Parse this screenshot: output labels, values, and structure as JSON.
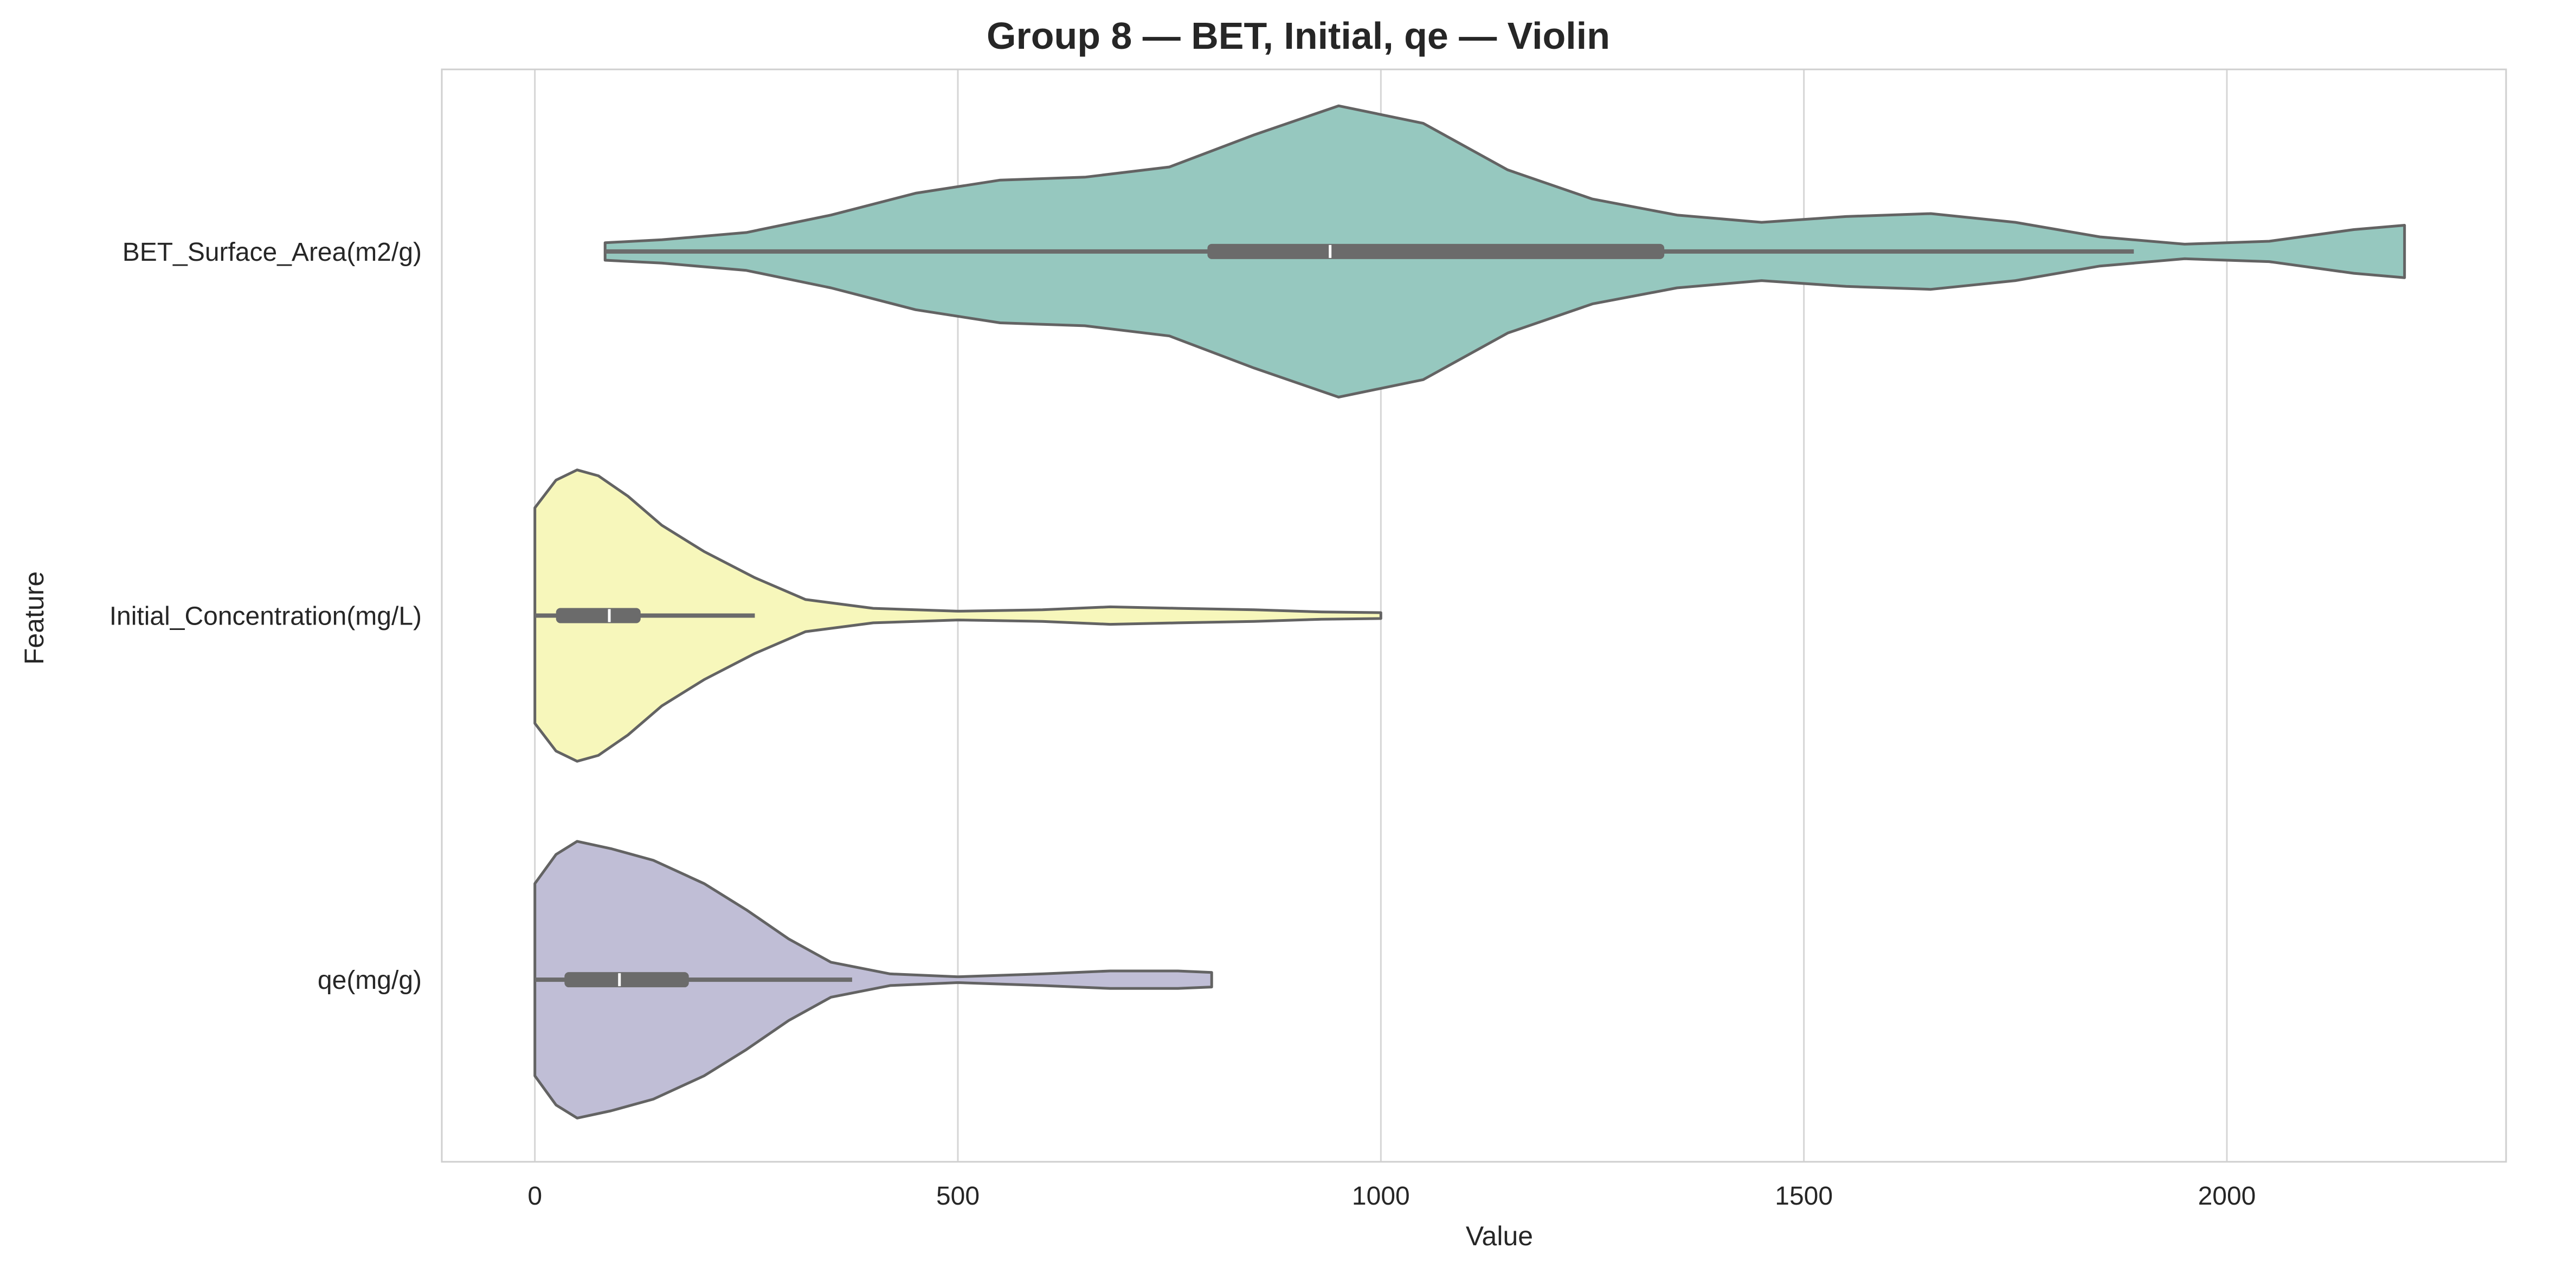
{
  "chart_data": {
    "type": "violin",
    "orientation": "horizontal",
    "title": "Group 8 — BET, Initial, qe — Violin",
    "xlabel": "Value",
    "ylabel": "Feature",
    "xlim": [
      -110,
      2330
    ],
    "xticks": [
      0,
      500,
      1000,
      1500,
      2000
    ],
    "grid": "x",
    "colors": {
      "outline": "#636363",
      "grid": "#d6d6d6",
      "frame": "#cfcfcf",
      "inner_box": "#6b6b6b",
      "median": "#ffffff"
    },
    "series": [
      {
        "name": "BET_Surface_Area(m2/g)",
        "color": "#96c8bf",
        "min": 83,
        "max": 2210,
        "whisker": [
          83,
          1890
        ],
        "q1": 795,
        "median": 940,
        "q3": 1335,
        "density": [
          [
            83,
            0.06
          ],
          [
            150,
            0.08
          ],
          [
            250,
            0.13
          ],
          [
            350,
            0.25
          ],
          [
            450,
            0.4
          ],
          [
            550,
            0.49
          ],
          [
            650,
            0.51
          ],
          [
            750,
            0.58
          ],
          [
            850,
            0.8
          ],
          [
            950,
            1.0
          ],
          [
            1050,
            0.88
          ],
          [
            1150,
            0.56
          ],
          [
            1250,
            0.36
          ],
          [
            1350,
            0.25
          ],
          [
            1450,
            0.2
          ],
          [
            1550,
            0.24
          ],
          [
            1650,
            0.26
          ],
          [
            1750,
            0.2
          ],
          [
            1850,
            0.1
          ],
          [
            1950,
            0.05
          ],
          [
            2050,
            0.07
          ],
          [
            2150,
            0.15
          ],
          [
            2210,
            0.18
          ]
        ]
      },
      {
        "name": "Initial_Concentration(mg/L)",
        "color": "#f7f7bb",
        "min": 0,
        "max": 1000,
        "whisker": [
          0,
          260
        ],
        "q1": 25,
        "median": 88,
        "q3": 125,
        "density": [
          [
            0,
            0.74
          ],
          [
            25,
            0.93
          ],
          [
            50,
            1.0
          ],
          [
            75,
            0.96
          ],
          [
            110,
            0.82
          ],
          [
            150,
            0.62
          ],
          [
            200,
            0.44
          ],
          [
            260,
            0.26
          ],
          [
            320,
            0.11
          ],
          [
            400,
            0.05
          ],
          [
            500,
            0.03
          ],
          [
            600,
            0.04
          ],
          [
            680,
            0.06
          ],
          [
            760,
            0.05
          ],
          [
            850,
            0.04
          ],
          [
            930,
            0.025
          ],
          [
            1000,
            0.02
          ]
        ]
      },
      {
        "name": "qe(mg/g)",
        "color": "#c0bed6",
        "min": 0,
        "max": 800,
        "whisker": [
          0,
          375
        ],
        "q1": 35,
        "median": 100,
        "q3": 182,
        "density": [
          [
            0,
            0.66
          ],
          [
            25,
            0.86
          ],
          [
            50,
            0.95
          ],
          [
            90,
            0.9
          ],
          [
            140,
            0.82
          ],
          [
            200,
            0.66
          ],
          [
            250,
            0.48
          ],
          [
            300,
            0.28
          ],
          [
            350,
            0.12
          ],
          [
            420,
            0.04
          ],
          [
            500,
            0.02
          ],
          [
            600,
            0.04
          ],
          [
            680,
            0.06
          ],
          [
            760,
            0.06
          ],
          [
            800,
            0.05
          ]
        ]
      }
    ]
  }
}
